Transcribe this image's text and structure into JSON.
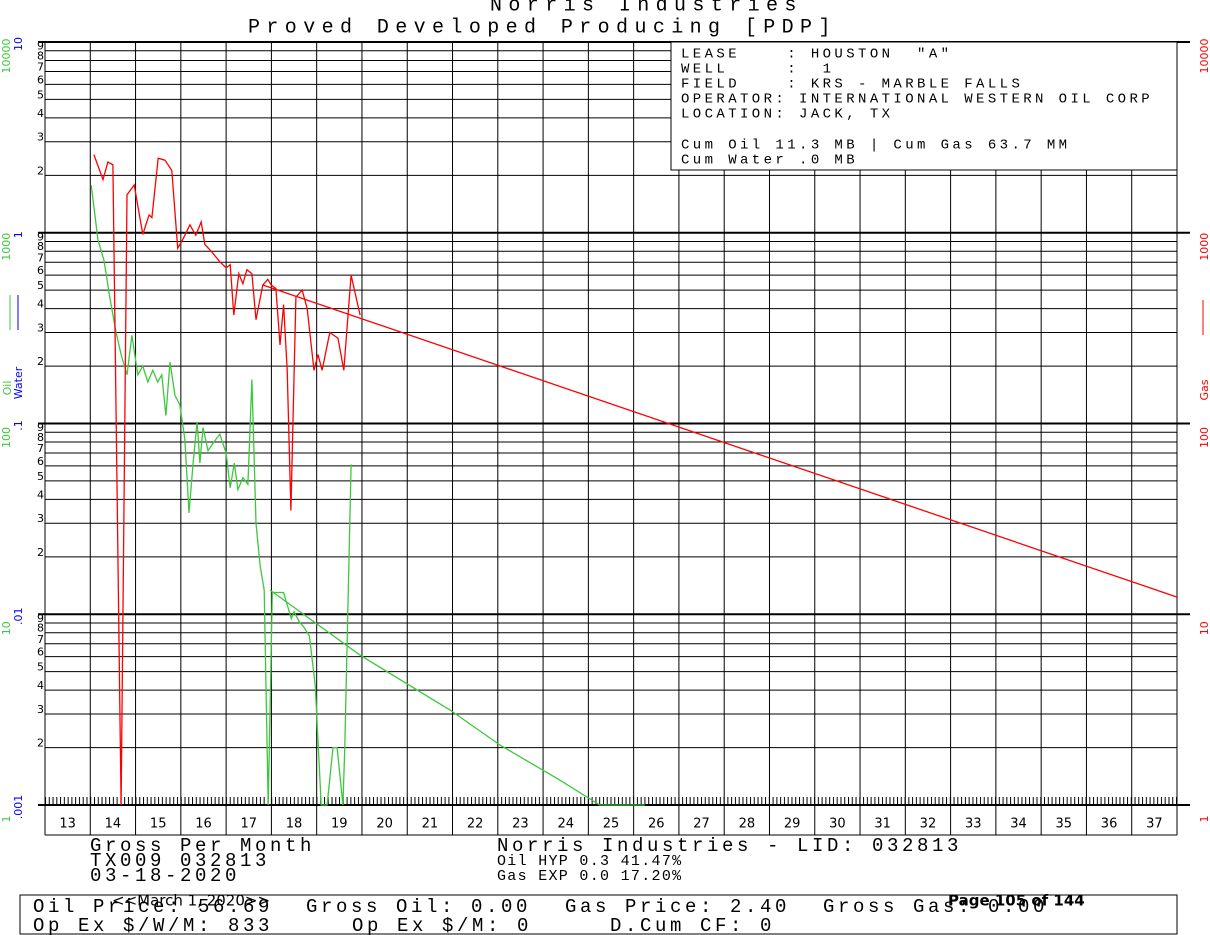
{
  "chart_data": {
    "type": "line",
    "title": "Norris Industries",
    "subtitle": "Proved Developed Producing [PDP]",
    "log_scale": true,
    "grid": true,
    "xlim": [
      13,
      38
    ],
    "xticks": [
      13,
      14,
      15,
      16,
      17,
      18,
      19,
      20,
      21,
      22,
      23,
      24,
      25,
      26,
      27,
      28,
      29,
      30,
      31,
      32,
      33,
      34,
      35,
      36,
      37
    ],
    "ylim": [
      1,
      10000
    ],
    "ylabel": "Oil",
    "yticks": [
      10000,
      {
        "value": 9000,
        "label": "9"
      },
      {
        "value": 8000,
        "label": "8"
      },
      {
        "value": 7000,
        "label": "7"
      },
      {
        "value": 6000,
        "label": "6"
      },
      {
        "value": 5000,
        "label": "5"
      },
      {
        "value": 4000,
        "label": "4"
      },
      {
        "value": 3000,
        "label": "3"
      },
      {
        "value": 2000,
        "label": "2"
      },
      1000,
      {
        "value": 900,
        "label": "9"
      },
      {
        "value": 800,
        "label": "8"
      },
      {
        "value": 700,
        "label": "7"
      },
      {
        "value": 600,
        "label": "6"
      },
      {
        "value": 500,
        "label": "5"
      },
      {
        "value": 400,
        "label": "4"
      },
      {
        "value": 300,
        "label": "3"
      },
      {
        "value": 200,
        "label": "2"
      },
      100,
      {
        "value": 90,
        "label": "9"
      },
      {
        "value": 80,
        "label": "8"
      },
      {
        "value": 70,
        "label": "7"
      },
      {
        "value": 60,
        "label": "6"
      },
      {
        "value": 50,
        "label": "5"
      },
      {
        "value": 40,
        "label": "4"
      },
      {
        "value": 30,
        "label": "3"
      },
      {
        "value": 20,
        "label": "2"
      },
      10,
      {
        "value": 9,
        "label": "9"
      },
      {
        "value": 8,
        "label": "8"
      },
      {
        "value": 7,
        "label": "7"
      },
      {
        "value": 6,
        "label": "6"
      },
      {
        "value": 5,
        "label": "5"
      },
      {
        "value": 4,
        "label": "4"
      },
      {
        "value": 3,
        "label": "3"
      },
      {
        "value": 2,
        "label": "2"
      },
      1
    ],
    "water_label": "Water",
    "water_lim": [
      0.001,
      10
    ],
    "water_ticks": [
      10,
      1,
      {
        "value": 0.1,
        "label": ".1"
      },
      {
        "value": 0.01,
        "label": ".01"
      },
      {
        "value": 0.001,
        "label": ".001"
      }
    ],
    "y2label": "Gas",
    "y2lim": [
      1,
      10000
    ],
    "y2ticks": [
      10000,
      1000,
      100,
      10,
      1
    ],
    "series": [
      {
        "name": "Oil",
        "color": "#3cc83c",
        "x": [
          14.02,
          14.17,
          14.3,
          14.44,
          14.57,
          14.68,
          14.81,
          14.92,
          15.05,
          15.16,
          15.27,
          15.38,
          15.49,
          15.58,
          15.67,
          15.76,
          15.87,
          15.98,
          16.09,
          16.18,
          16.27,
          16.36,
          16.42,
          16.49,
          16.6,
          16.73,
          16.86,
          17.0,
          17.09,
          17.18,
          17.26,
          17.37,
          17.48,
          17.57,
          17.66,
          17.75,
          17.84,
          17.93,
          18.02,
          18.11,
          18.27,
          18.44,
          18.5,
          18.62,
          18.71,
          18.84,
          18.97,
          19.1,
          19.23,
          19.36,
          19.45,
          19.58,
          19.62,
          19.76
        ],
        "values": [
          1775,
          915,
          720,
          445,
          300,
          230,
          180,
          290,
          180,
          200,
          165,
          190,
          165,
          180,
          110,
          210,
          140,
          125,
          82,
          34,
          62,
          102,
          62,
          95,
          72,
          80,
          88,
          70,
          46,
          62,
          45,
          52,
          48,
          170,
          30,
          18,
          13.4,
          1,
          13,
          13,
          13,
          9.5,
          10.3,
          9.1,
          8.6,
          7.7,
          4.2,
          1,
          1,
          2,
          2,
          1,
          2,
          61
        ]
      },
      {
        "color": "#3cc83c",
        "x": [
          17.97,
          19.96,
          21.94,
          23.05,
          24.37,
          25.25,
          26.25
        ],
        "values": [
          13.4,
          6.1,
          3.15,
          2.06,
          1.35,
          1,
          1
        ]
      },
      {
        "name": "Gas",
        "color": "#ff0000",
        "axis": "y2",
        "x": [
          14.08,
          14.28,
          14.39,
          14.5,
          14.68,
          14.81,
          14.97,
          15.16,
          15.3,
          15.36,
          15.5,
          15.65,
          15.8,
          15.93,
          16.04,
          16.2,
          16.33,
          16.45,
          16.53,
          16.69,
          16.86,
          17.0,
          17.09,
          17.17,
          17.28,
          17.37,
          17.46,
          17.57,
          17.66,
          17.81,
          17.92,
          18.0,
          18.1,
          18.19,
          18.27,
          18.35,
          18.43,
          18.54,
          18.68,
          18.79,
          18.94,
          19.03,
          19.12,
          19.29,
          19.47,
          19.6,
          19.76,
          19.96
        ],
        "values": [
          2570,
          1900,
          2350,
          2270,
          1,
          1580,
          1780,
          980,
          1240,
          1200,
          2460,
          2400,
          2120,
          830,
          920,
          1100,
          970,
          1140,
          870,
          790,
          705,
          655,
          680,
          370,
          610,
          540,
          640,
          610,
          350,
          532,
          570,
          530,
          510,
          258,
          420,
          190,
          35,
          460,
          500,
          400,
          190,
          230,
          190,
          300,
          280,
          190,
          600,
          370
        ]
      },
      {
        "color": "#ff0000",
        "axis": "y2",
        "x": [
          17.81,
          38.0
        ],
        "values": [
          532,
          12.3
        ]
      }
    ]
  },
  "info": [
    "LEASE    : HOUSTON  \"A\"",
    "WELL     :  1",
    "FIELD    : KRS - MARBLE FALLS",
    "OPERATOR: INTERNATIONAL WESTERN OIL CORP",
    "LOCATION: JACK, TX",
    "Cum Oil 11.3 MB | Cum Gas 63.7 MM",
    "Cum Water .0 MB"
  ],
  "footer": {
    "left": [
      "Gross Per Month",
      "TX009 032813",
      "03-18-2020"
    ],
    "center": "Norris Industries - LID: 032813",
    "models": [
      "Oil HYP 0.3 41.47%",
      "Gas EXP 0.0 17.20%"
    ],
    "row1": [
      "Oil Price: 56.69",
      "Gross Oil: 0.00",
      "Gas Price: 2.40",
      "Gross Gas: 0.00"
    ],
    "row2": [
      "Op Ex $/W/M: 833",
      "Op Ex $/M: 0",
      "D.Cum CF: 0"
    ],
    "date": "<<March 1, 2020>>",
    "page": "Page 105 of 144"
  }
}
